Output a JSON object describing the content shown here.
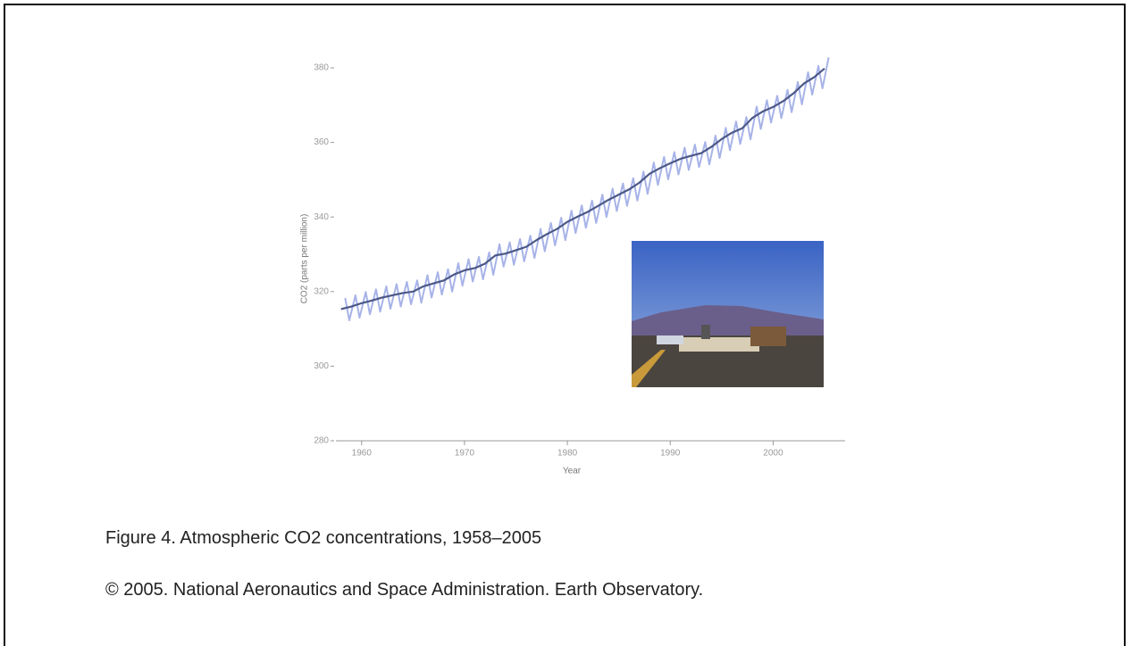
{
  "chart_data": {
    "type": "line",
    "y_label": "CO2 (parts per million)",
    "x_label": "Year",
    "xlim": [
      1957.5,
      2007
    ],
    "ylim": [
      280,
      380
    ],
    "xticks": [
      1960,
      1970,
      1980,
      1990,
      2000
    ],
    "yticks": [
      280,
      300,
      320,
      340,
      360,
      380
    ],
    "series": [
      {
        "color": "#a7b3e8",
        "x": [
          1958.4,
          1958.8,
          1959.4,
          1959.8,
          1960.4,
          1960.8,
          1961.4,
          1961.8,
          1962.4,
          1962.8,
          1963.4,
          1963.8,
          1964.4,
          1964.8,
          1965.4,
          1965.8,
          1966.4,
          1966.8,
          1967.4,
          1967.8,
          1968.4,
          1968.8,
          1969.4,
          1969.8,
          1970.4,
          1970.8,
          1971.4,
          1971.8,
          1972.4,
          1972.8,
          1973.4,
          1973.8,
          1974.4,
          1974.8,
          1975.4,
          1975.8,
          1976.4,
          1976.8,
          1977.4,
          1977.8,
          1978.4,
          1978.8,
          1979.4,
          1979.8,
          1980.4,
          1980.8,
          1981.4,
          1981.8,
          1982.4,
          1982.8,
          1983.4,
          1983.8,
          1984.4,
          1984.8,
          1985.4,
          1985.8,
          1986.4,
          1986.8,
          1987.4,
          1987.8,
          1988.4,
          1988.8,
          1989.4,
          1989.8,
          1990.4,
          1990.8,
          1991.4,
          1991.8,
          1992.4,
          1992.8,
          1993.4,
          1993.8,
          1994.4,
          1994.8,
          1995.4,
          1995.8,
          1996.4,
          1996.8,
          1997.4,
          1997.8,
          1998.4,
          1998.8,
          1999.4,
          1999.8,
          2000.4,
          2000.8,
          2001.4,
          2001.8,
          2002.4,
          2002.8,
          2003.4,
          2003.8,
          2004.4,
          2004.8,
          2005.4
        ],
        "values": [
          318.3,
          312.3,
          319.0,
          313.0,
          319.9,
          313.9,
          320.6,
          314.6,
          321.4,
          315.4,
          322.0,
          316.0,
          322.6,
          316.6,
          323.0,
          317.0,
          324.4,
          318.4,
          325.2,
          319.2,
          326.0,
          320.0,
          327.6,
          321.6,
          328.7,
          322.7,
          329.3,
          323.3,
          330.5,
          324.5,
          332.7,
          326.7,
          333.2,
          327.2,
          334.1,
          328.1,
          335.0,
          329.0,
          336.8,
          330.8,
          338.4,
          332.4,
          339.8,
          333.8,
          341.7,
          335.7,
          343.1,
          337.1,
          344.4,
          338.4,
          346.0,
          340.0,
          347.6,
          341.6,
          349.0,
          343.0,
          350.4,
          344.4,
          352.2,
          346.2,
          354.6,
          348.6,
          356.1,
          350.1,
          357.4,
          351.4,
          358.6,
          352.6,
          359.4,
          353.4,
          360.1,
          354.1,
          361.8,
          355.8,
          363.9,
          357.9,
          365.6,
          359.6,
          366.8,
          360.8,
          369.6,
          363.6,
          371.3,
          365.3,
          372.5,
          366.5,
          374.1,
          368.1,
          376.2,
          370.2,
          378.8,
          372.8,
          380.5,
          374.5,
          382.8
        ]
      },
      {
        "color": "#4b5887",
        "x": [
          1958,
          1959,
          1960,
          1961,
          1962,
          1963,
          1964,
          1965,
          1966,
          1967,
          1968,
          1969,
          1970,
          1971,
          1972,
          1973,
          1974,
          1975,
          1976,
          1977,
          1978,
          1979,
          1980,
          1981,
          1982,
          1983,
          1984,
          1985,
          1986,
          1987,
          1988,
          1989,
          1990,
          1991,
          1992,
          1993,
          1994,
          1995,
          1996,
          1997,
          1998,
          1999,
          2000,
          2001,
          2002,
          2003,
          2004,
          2005
        ],
        "values": [
          315.3,
          316.0,
          316.9,
          317.6,
          318.4,
          319.0,
          319.6,
          320.0,
          321.4,
          322.2,
          323.0,
          324.6,
          325.7,
          326.3,
          327.5,
          329.7,
          330.2,
          331.1,
          332.0,
          333.8,
          335.4,
          336.8,
          338.7,
          340.1,
          341.4,
          343.0,
          344.6,
          346.0,
          347.4,
          349.2,
          351.6,
          353.1,
          354.4,
          355.6,
          356.4,
          357.1,
          358.8,
          360.9,
          362.6,
          363.8,
          366.6,
          368.3,
          369.5,
          371.1,
          373.2,
          375.8,
          377.5,
          379.8
        ]
      }
    ]
  },
  "caption": "Figure 4. Atmospheric CO2 concentrations, 1958–2005",
  "credit": "© 2005. National Aeronautics and Space Administration. Earth Observatory."
}
